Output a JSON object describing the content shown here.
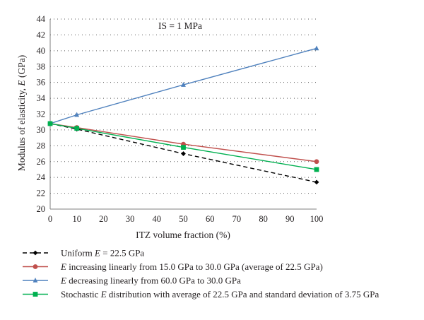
{
  "chart_data": {
    "type": "line",
    "title": "",
    "annotation": "IS = 1 MPa",
    "xlabel": "ITZ volume fraction (%)",
    "ylabel_parts": [
      "Modulus of elasticity, ",
      "E",
      " (GPa)"
    ],
    "xlim": [
      0,
      100
    ],
    "ylim": [
      20,
      44
    ],
    "xticks": [
      0,
      10,
      20,
      30,
      40,
      50,
      60,
      70,
      80,
      90,
      100
    ],
    "yticks": [
      20,
      22,
      24,
      26,
      28,
      30,
      32,
      34,
      36,
      38,
      40,
      42,
      44
    ],
    "grid": "horizontal dotted",
    "legend_position": "bottom",
    "series": [
      {
        "name": "Uniform E = 22.5 GPa",
        "label_parts": [
          [
            "Uniform ",
            false
          ],
          [
            "E",
            true
          ],
          [
            " = 22.5 GPa",
            false
          ]
        ],
        "x": [
          0,
          10,
          50,
          100
        ],
        "y": [
          30.8,
          30.1,
          27.0,
          23.4
        ],
        "color": "#000000",
        "dash": "6,4",
        "marker": "diamond"
      },
      {
        "name": "E increasing linearly from 15.0 GPa to 30.0 GPa (average of 22.5 GPa)",
        "label_parts": [
          [
            "E",
            true
          ],
          [
            " increasing linearly from 15.0 GPa to 30.0 GPa (average of 22.5 GPa)",
            false
          ]
        ],
        "x": [
          0,
          10,
          50,
          100
        ],
        "y": [
          30.8,
          30.3,
          28.2,
          26.0
        ],
        "color": "#c0504d",
        "dash": "",
        "marker": "circle"
      },
      {
        "name": "E decreasing linearly from 60.0 GPa to 30.0 GPa",
        "label_parts": [
          [
            "E",
            true
          ],
          [
            " decreasing linearly from 60.0 GPa to 30.0 GPa",
            false
          ]
        ],
        "x": [
          0,
          10,
          50,
          100
        ],
        "y": [
          30.8,
          31.9,
          35.7,
          40.3
        ],
        "color": "#4f81bd",
        "dash": "",
        "marker": "triangle"
      },
      {
        "name": "Stochastic E distribution with average of 22.5 GPa and standard deviation of 3.75 GPa",
        "label_parts": [
          [
            "Stochastic ",
            false
          ],
          [
            "E",
            true
          ],
          [
            " distribution with average of 22.5 GPa and standard deviation of 3.75 GPa",
            false
          ]
        ],
        "x": [
          0,
          10,
          50,
          100
        ],
        "y": [
          30.8,
          30.2,
          27.8,
          25.0
        ],
        "color": "#00b050",
        "dash": "",
        "marker": "square"
      }
    ]
  }
}
